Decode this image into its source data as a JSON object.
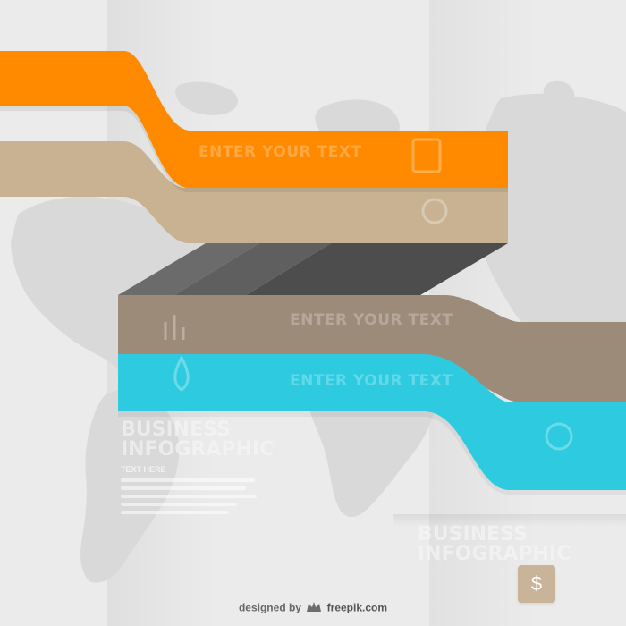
{
  "title_block": {
    "line1": "BUSINESS",
    "line2": "INFOGRAPHIC",
    "subtitle": "TEXT HERE"
  },
  "title_block_2": {
    "line1": "BUSINESS",
    "line2": "INFOGRAPHIC"
  },
  "ribbons": [
    {
      "color": "#ff8a00",
      "label": "ENTER YOUR TEXT",
      "icon": "document-icon"
    },
    {
      "color": "#c8b292",
      "label": "",
      "icon": "lightbulb-icon"
    },
    {
      "color": "#9c8b78",
      "label": "ENTER YOUR TEXT",
      "icon": "chart-icon"
    },
    {
      "color": "#2ecbe0",
      "label": "ENTER YOUR TEXT",
      "icon": "drop-icon"
    }
  ],
  "dollar_symbol": "$",
  "credit": {
    "prefix": "designed by",
    "brand": "freepik.com"
  }
}
